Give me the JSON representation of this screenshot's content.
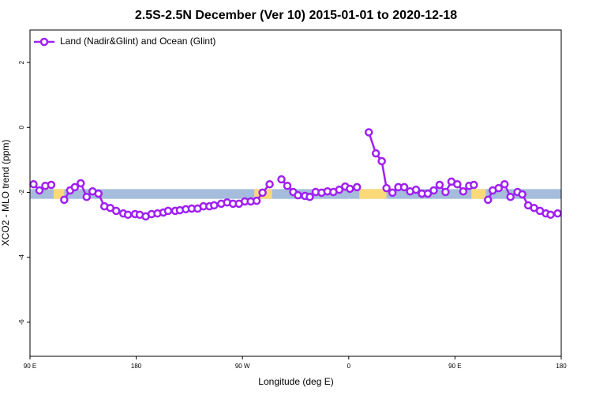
{
  "chart_data": {
    "type": "line",
    "title": "2.5S-2.5N December (Ver 10)   2015-01-01 to 2020-12-18",
    "xlabel": "Longitude (deg E)",
    "ylabel": "XCO2 - MLO trend (ppm)",
    "xlim": [
      90,
      540
    ],
    "ylim": [
      -7.05,
      3
    ],
    "xticks": [
      {
        "value": 90,
        "label": "90 E"
      },
      180,
      {
        "value": 270,
        "label": "90 W"
      },
      {
        "value": 360,
        "label": "0"
      },
      {
        "value": 450,
        "label": "90 E"
      },
      {
        "value": 540,
        "label": "180"
      }
    ],
    "yticks": [
      -6,
      -4,
      -2,
      0,
      2
    ],
    "legend": "top-left",
    "band": {
      "ylim": [
        -2.2,
        -1.9
      ],
      "color": "#a5bcdc",
      "segments": [
        {
          "x": [
            110,
            119
          ],
          "color": "#fdd97a"
        },
        {
          "x": [
            280,
            295
          ],
          "color": "#fdd97a"
        },
        {
          "x": [
            369,
            392
          ],
          "color": "#fdd97a"
        },
        {
          "x": [
            464,
            476
          ],
          "color": "#fdd97a"
        }
      ]
    },
    "x": [
      93,
      98,
      103,
      108,
      115,
      119,
      124,
      128,
      133,
      138,
      143,
      148,
      153,
      158,
      163,
      169,
      173,
      179,
      183,
      188,
      193,
      198,
      203,
      207,
      213,
      217,
      222,
      227,
      232,
      237,
      242,
      246,
      252,
      257,
      262,
      267,
      272,
      277,
      282,
      287,
      293,
      298,
      303,
      308,
      313,
      317,
      323,
      327,
      332,
      337,
      342,
      347,
      352,
      357,
      361,
      367,
      372,
      377,
      383,
      388,
      392,
      397,
      402,
      407,
      412,
      417,
      422,
      427,
      432,
      437,
      442,
      447,
      452,
      457,
      462,
      466,
      472,
      478,
      482,
      487,
      492,
      497,
      503,
      507,
      512,
      517,
      522,
      527,
      531,
      537
    ],
    "series": [
      {
        "name": "Land (Nadir&Glint) and Ocean (Glint)",
        "color": "#a020f0",
        "values": [
          -1.75,
          -1.94,
          -1.8,
          -1.77,
          null,
          -2.23,
          -1.94,
          -1.84,
          -1.72,
          -2.14,
          -1.97,
          -2.04,
          -2.43,
          -2.48,
          -2.57,
          -2.65,
          -2.69,
          -2.67,
          -2.69,
          -2.74,
          -2.67,
          -2.65,
          -2.62,
          -2.57,
          -2.57,
          -2.55,
          -2.52,
          -2.5,
          -2.5,
          -2.43,
          -2.43,
          -2.4,
          -2.35,
          -2.31,
          -2.35,
          -2.35,
          -2.28,
          -2.28,
          -2.26,
          -2.01,
          -1.75,
          null,
          -1.6,
          -1.8,
          -1.99,
          -2.09,
          -2.11,
          -2.14,
          -1.99,
          -2.01,
          -1.97,
          -1.99,
          -1.92,
          -1.82,
          -1.89,
          -1.84,
          null,
          -0.15,
          -0.8,
          -1.04,
          -1.87,
          -2.01,
          -1.84,
          -1.84,
          -1.97,
          -1.92,
          -2.04,
          -2.04,
          -1.94,
          -1.77,
          -1.99,
          -1.67,
          -1.75,
          -1.97,
          -1.8,
          -1.77,
          null,
          -2.23,
          -1.94,
          -1.87,
          -1.75,
          -2.14,
          -1.99,
          -2.06,
          -2.4,
          -2.48,
          -2.57,
          -2.65,
          -2.69,
          -2.65
        ]
      }
    ]
  }
}
